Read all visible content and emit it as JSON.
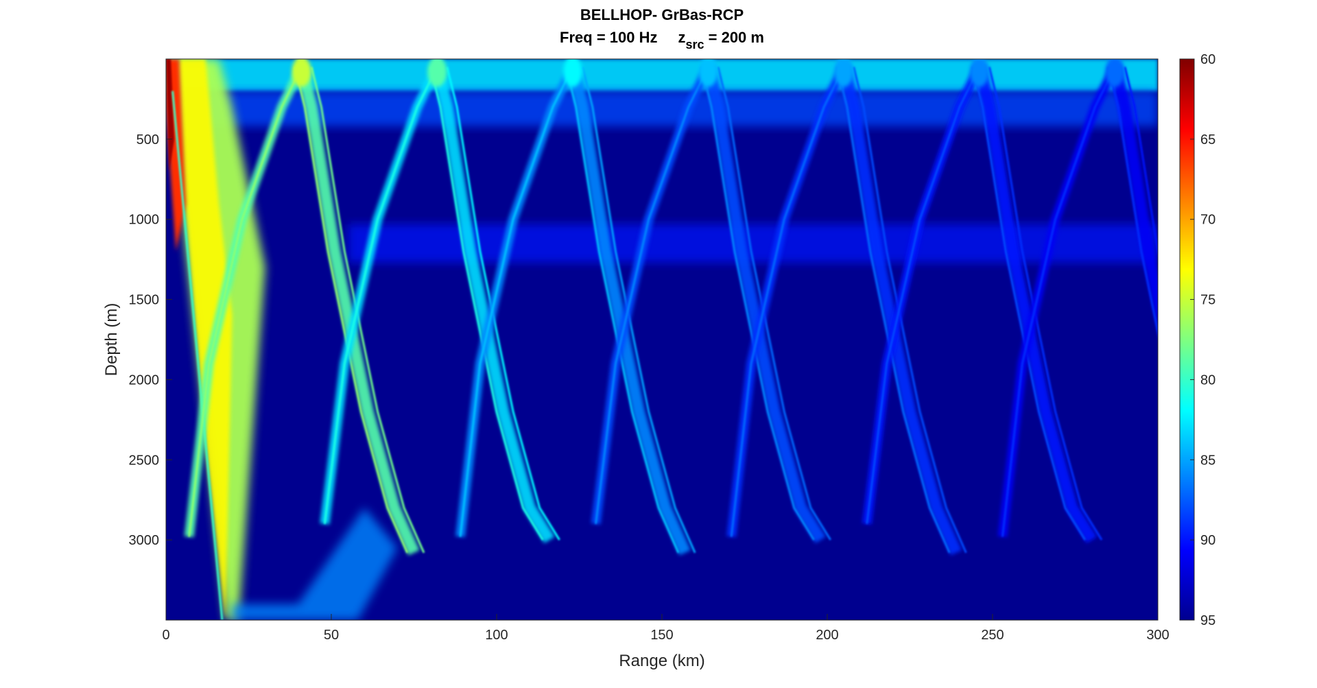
{
  "chart_data": {
    "type": "heatmap",
    "title": "BELLHOP- GrBas-RCP",
    "subtitle": {
      "freq": "Freq = 100 Hz",
      "zsrc_base": "z",
      "zsrc_sub": "src",
      "zsrc_rest": " = 200 m"
    },
    "xlabel": "Range (km)",
    "ylabel": "Depth (m)",
    "xlim": [
      0,
      300
    ],
    "ylim": [
      0,
      3500
    ],
    "y_reversed": true,
    "xticks": [
      0,
      50,
      100,
      150,
      200,
      250,
      300
    ],
    "yticks": [
      500,
      1000,
      1500,
      2000,
      2500,
      3000
    ],
    "colorbar": {
      "ticks": [
        60,
        65,
        70,
        75,
        80,
        85,
        90,
        95
      ],
      "clim": [
        60,
        95
      ],
      "reversed": true,
      "colormap": "jet"
    },
    "background_color": "#00008f",
    "source_depth_m": 200,
    "convergence_zone_period_km": 41,
    "surface_duct": {
      "range_km": [
        0,
        300
      ],
      "depth_m": [
        0,
        200
      ],
      "level_db": 83
    },
    "secondary_duct_depth_m": 1150
  }
}
